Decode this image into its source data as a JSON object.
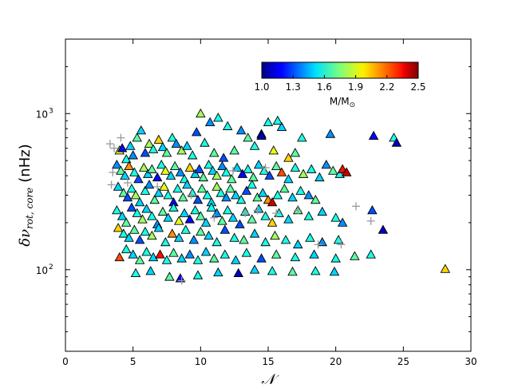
{
  "chart_data": {
    "type": "scatter",
    "xlabel": "𝒩",
    "ylabel_main": "δν",
    "ylabel_sub": "rot, core",
    "ylabel_unit": "(nHz)",
    "xlim": [
      0,
      30
    ],
    "ylim": [
      30,
      3000
    ],
    "yscale": "log",
    "x_ticks": [
      0,
      5,
      10,
      15,
      20,
      25,
      30
    ],
    "y_ticks": [
      100,
      1000
    ],
    "y_tick_labels": [
      {
        "base": "10",
        "exp": "2"
      },
      {
        "base": "10",
        "exp": "3"
      }
    ],
    "colorbar": {
      "label": "M/M",
      "label_sub": "⊙",
      "min": 1.0,
      "max": 2.5,
      "ticks": [
        "1.0",
        "1.3",
        "1.6",
        "1.9",
        "2.2",
        "2.5"
      ],
      "colormap": "jet",
      "placement": "top-center, inside axes"
    },
    "series": [
      {
        "marker": "triangle",
        "note": "colored by mass",
        "points": [
          [
            4.0,
            580,
            1.9
          ],
          [
            4.2,
            600,
            1.2
          ],
          [
            4.5,
            510,
            1.6
          ],
          [
            4.8,
            620,
            1.5
          ],
          [
            5.0,
            540,
            1.4
          ],
          [
            5.3,
            700,
            1.7
          ],
          [
            5.6,
            780,
            1.5
          ],
          [
            5.9,
            560,
            1.3
          ],
          [
            6.2,
            640,
            1.8
          ],
          [
            6.5,
            590,
            1.6
          ],
          [
            6.9,
            680,
            2.0
          ],
          [
            7.2,
            610,
            1.5
          ],
          [
            7.5,
            560,
            1.7
          ],
          [
            7.9,
            700,
            1.6
          ],
          [
            8.2,
            640,
            1.4
          ],
          [
            8.6,
            580,
            1.8
          ],
          [
            9.0,
            620,
            1.5
          ],
          [
            9.4,
            540,
            1.6
          ],
          [
            9.7,
            760,
            1.3
          ],
          [
            10.0,
            1000,
            1.8
          ],
          [
            10.3,
            650,
            1.6
          ],
          [
            10.7,
            880,
            1.4
          ],
          [
            11.0,
            560,
            1.7
          ],
          [
            11.3,
            940,
            1.6
          ],
          [
            11.7,
            520,
            1.3
          ],
          [
            12.0,
            830,
            1.6
          ],
          [
            12.5,
            580,
            1.7
          ],
          [
            13.0,
            780,
            1.4
          ],
          [
            13.5,
            700,
            1.7
          ],
          [
            14.0,
            620,
            1.6
          ],
          [
            14.5,
            740,
            1.2
          ],
          [
            15.0,
            880,
            1.6
          ],
          [
            15.4,
            580,
            1.9
          ],
          [
            16.0,
            820,
            1.5
          ],
          [
            16.5,
            520,
            2.0
          ],
          [
            17.0,
            560,
            1.7
          ],
          [
            17.5,
            700,
            1.6
          ],
          [
            3.8,
            470,
            1.4
          ],
          [
            4.1,
            430,
            1.7
          ],
          [
            4.4,
            400,
            1.5
          ],
          [
            4.7,
            460,
            2.1
          ],
          [
            5.1,
            420,
            1.6
          ],
          [
            5.4,
            380,
            1.3
          ],
          [
            5.8,
            450,
            1.8
          ],
          [
            6.1,
            410,
            1.5
          ],
          [
            6.4,
            440,
            1.7
          ],
          [
            6.8,
            390,
            1.2
          ],
          [
            7.1,
            470,
            1.6
          ],
          [
            7.4,
            430,
            1.9
          ],
          [
            7.8,
            400,
            1.5
          ],
          [
            8.1,
            460,
            1.7
          ],
          [
            8.5,
            420,
            1.4
          ],
          [
            8.8,
            380,
            1.6
          ],
          [
            9.2,
            450,
            2.0
          ],
          [
            9.6,
            410,
            1.5
          ],
          [
            9.9,
            440,
            1.3
          ],
          [
            10.2,
            390,
            1.7
          ],
          [
            10.6,
            470,
            1.6
          ],
          [
            10.9,
            430,
            1.5
          ],
          [
            11.2,
            400,
            1.8
          ],
          [
            11.6,
            460,
            1.4
          ],
          [
            11.9,
            420,
            1.6
          ],
          [
            12.3,
            380,
            1.7
          ],
          [
            12.7,
            450,
            1.5
          ],
          [
            13.1,
            410,
            1.2
          ],
          [
            13.5,
            440,
            1.6
          ],
          [
            13.9,
            390,
            1.7
          ],
          [
            14.3,
            470,
            1.5
          ],
          [
            14.7,
            430,
            1.6
          ],
          [
            15.1,
            400,
            1.3
          ],
          [
            15.6,
            460,
            1.7
          ],
          [
            16.0,
            420,
            2.2
          ],
          [
            16.5,
            380,
            1.5
          ],
          [
            17.0,
            450,
            1.6
          ],
          [
            17.6,
            410,
            1.8
          ],
          [
            18.2,
            440,
            1.6
          ],
          [
            18.8,
            390,
            1.5
          ],
          [
            19.3,
            470,
            1.4
          ],
          [
            19.8,
            430,
            1.7
          ],
          [
            20.3,
            410,
            1.6
          ],
          [
            20.5,
            440,
            2.3
          ],
          [
            20.8,
            420,
            2.4
          ],
          [
            3.9,
            340,
            1.5
          ],
          [
            4.3,
            310,
            1.7
          ],
          [
            4.6,
            290,
            1.3
          ],
          [
            4.9,
            330,
            1.6
          ],
          [
            5.2,
            300,
            1.8
          ],
          [
            5.5,
            270,
            1.5
          ],
          [
            5.9,
            320,
            1.6
          ],
          [
            6.2,
            350,
            1.4
          ],
          [
            6.6,
            280,
            1.7
          ],
          [
            6.9,
            310,
            1.5
          ],
          [
            7.3,
            340,
            1.9
          ],
          [
            7.6,
            300,
            1.6
          ],
          [
            8.0,
            270,
            1.2
          ],
          [
            8.3,
            330,
            1.6
          ],
          [
            8.7,
            290,
            1.7
          ],
          [
            9.0,
            350,
            1.5
          ],
          [
            9.4,
            310,
            1.6
          ],
          [
            9.8,
            280,
            1.3
          ],
          [
            10.1,
            330,
            1.7
          ],
          [
            10.5,
            300,
            1.6
          ],
          [
            10.8,
            270,
            1.5
          ],
          [
            11.2,
            340,
            1.8
          ],
          [
            11.5,
            310,
            1.6
          ],
          [
            11.9,
            290,
            1.4
          ],
          [
            12.2,
            330,
            1.7
          ],
          [
            12.6,
            300,
            1.5
          ],
          [
            13.0,
            280,
            1.6
          ],
          [
            13.4,
            320,
            1.3
          ],
          [
            13.8,
            350,
            1.6
          ],
          [
            14.2,
            290,
            1.7
          ],
          [
            14.6,
            310,
            1.5
          ],
          [
            15.0,
            280,
            2.1
          ],
          [
            15.3,
            270,
            2.4
          ],
          [
            15.7,
            300,
            1.6
          ],
          [
            16.2,
            330,
            1.7
          ],
          [
            16.8,
            290,
            1.5
          ],
          [
            17.4,
            320,
            1.6
          ],
          [
            18.0,
            300,
            1.4
          ],
          [
            18.5,
            280,
            1.7
          ],
          [
            3.8,
            240,
            1.6
          ],
          [
            4.2,
            220,
            1.5
          ],
          [
            4.5,
            200,
            1.7
          ],
          [
            4.9,
            250,
            1.3
          ],
          [
            5.3,
            230,
            1.6
          ],
          [
            5.7,
            210,
            1.8
          ],
          [
            6.0,
            245,
            1.5
          ],
          [
            6.4,
            220,
            1.6
          ],
          [
            6.8,
            195,
            1.4
          ],
          [
            7.2,
            235,
            1.7
          ],
          [
            7.6,
            215,
            1.5
          ],
          [
            8.0,
            250,
            1.6
          ],
          [
            8.4,
            205,
            1.9
          ],
          [
            8.8,
            230,
            1.5
          ],
          [
            9.2,
            210,
            1.2
          ],
          [
            9.6,
            240,
            1.6
          ],
          [
            10.0,
            220,
            1.7
          ],
          [
            10.4,
            200,
            1.5
          ],
          [
            10.8,
            250,
            1.6
          ],
          [
            11.2,
            230,
            1.4
          ],
          [
            11.6,
            205,
            1.7
          ],
          [
            12.0,
            240,
            1.6
          ],
          [
            12.4,
            215,
            1.5
          ],
          [
            12.9,
            195,
            1.3
          ],
          [
            13.3,
            235,
            1.6
          ],
          [
            13.8,
            210,
            1.7
          ],
          [
            14.3,
            245,
            1.5
          ],
          [
            14.8,
            220,
            1.6
          ],
          [
            15.3,
            200,
            2.0
          ],
          [
            15.8,
            230,
            1.6
          ],
          [
            16.5,
            210,
            1.5
          ],
          [
            17.2,
            240,
            1.7
          ],
          [
            18.0,
            220,
            1.6
          ],
          [
            19.0,
            235,
            1.5
          ],
          [
            20.0,
            215,
            1.6
          ],
          [
            20.5,
            200,
            1.4
          ],
          [
            22.7,
            240,
            1.3
          ],
          [
            3.9,
            185,
            2.0
          ],
          [
            4.3,
            170,
            1.6
          ],
          [
            4.7,
            160,
            1.5
          ],
          [
            5.1,
            180,
            1.7
          ],
          [
            5.5,
            155,
            1.3
          ],
          [
            5.9,
            175,
            1.6
          ],
          [
            6.4,
            165,
            1.8
          ],
          [
            6.9,
            185,
            1.5
          ],
          [
            7.4,
            150,
            1.6
          ],
          [
            7.9,
            170,
            2.1
          ],
          [
            8.4,
            160,
            1.5
          ],
          [
            8.9,
            180,
            1.6
          ],
          [
            9.5,
            155,
            1.4
          ],
          [
            10.0,
            175,
            1.7
          ],
          [
            10.6,
            165,
            1.5
          ],
          [
            11.2,
            150,
            1.6
          ],
          [
            11.8,
            180,
            1.3
          ],
          [
            12.5,
            160,
            1.6
          ],
          [
            13.2,
            155,
            1.7
          ],
          [
            14.0,
            170,
            1.5
          ],
          [
            14.8,
            150,
            1.6
          ],
          [
            15.5,
            165,
            1.8
          ],
          [
            16.3,
            155,
            1.6
          ],
          [
            17.2,
            145,
            1.5
          ],
          [
            18.1,
            160,
            1.6
          ],
          [
            19.0,
            150,
            1.4
          ],
          [
            20.2,
            155,
            1.6
          ],
          [
            23.5,
            180,
            1.1
          ],
          [
            4.0,
            120,
            2.2
          ],
          [
            4.5,
            135,
            1.6
          ],
          [
            5.0,
            125,
            1.5
          ],
          [
            5.5,
            115,
            1.7
          ],
          [
            6.0,
            130,
            1.6
          ],
          [
            6.5,
            120,
            1.5
          ],
          [
            7.0,
            125,
            2.3
          ],
          [
            7.5,
            115,
            1.6
          ],
          [
            8.0,
            128,
            1.7
          ],
          [
            8.6,
            118,
            1.5
          ],
          [
            9.2,
            125,
            1.4
          ],
          [
            9.8,
            115,
            1.6
          ],
          [
            10.4,
            130,
            1.5
          ],
          [
            11.0,
            118,
            1.7
          ],
          [
            11.8,
            125,
            1.6
          ],
          [
            12.6,
            115,
            1.5
          ],
          [
            13.4,
            128,
            1.6
          ],
          [
            14.5,
            118,
            1.3
          ],
          [
            15.6,
            125,
            1.7
          ],
          [
            17.0,
            120,
            1.6
          ],
          [
            18.4,
            125,
            1.5
          ],
          [
            20.0,
            118,
            1.6
          ],
          [
            21.4,
            122,
            1.7
          ],
          [
            22.6,
            125,
            1.6
          ],
          [
            5.2,
            95,
            1.6
          ],
          [
            6.3,
            98,
            1.5
          ],
          [
            7.7,
            90,
            1.7
          ],
          [
            8.5,
            88,
            1.2
          ],
          [
            9.8,
            92,
            1.6
          ],
          [
            11.3,
            96,
            1.5
          ],
          [
            12.8,
            95,
            1.1
          ],
          [
            14.0,
            100,
            1.5
          ],
          [
            15.3,
            98,
            1.6
          ],
          [
            16.8,
            97,
            1.7
          ],
          [
            18.5,
            98,
            1.6
          ],
          [
            19.9,
            97,
            1.5
          ],
          [
            28.1,
            101,
            2.0
          ],
          [
            22.8,
            720,
            1.2
          ],
          [
            24.3,
            700,
            1.6
          ],
          [
            24.5,
            650,
            1.1
          ],
          [
            19.6,
            740,
            1.4
          ],
          [
            14.5,
            720,
            1.1
          ],
          [
            15.7,
            900,
            1.6
          ]
        ]
      },
      {
        "marker": "plus",
        "color": "#999999",
        "points": [
          [
            3.3,
            640
          ],
          [
            3.6,
            600
          ],
          [
            4.1,
            700
          ],
          [
            3.5,
            420
          ],
          [
            3.4,
            350
          ],
          [
            4.6,
            360
          ],
          [
            6.8,
            340
          ],
          [
            9.3,
            300
          ],
          [
            11.0,
            215
          ],
          [
            13.3,
            230
          ],
          [
            14.2,
            240
          ],
          [
            15.6,
            230
          ],
          [
            17.2,
            240
          ],
          [
            18.7,
            145
          ],
          [
            20.4,
            145
          ],
          [
            21.5,
            255
          ],
          [
            22.6,
            205
          ],
          [
            8.6,
            85
          ],
          [
            12.4,
            430
          ],
          [
            14.8,
            450
          ]
        ]
      }
    ]
  }
}
